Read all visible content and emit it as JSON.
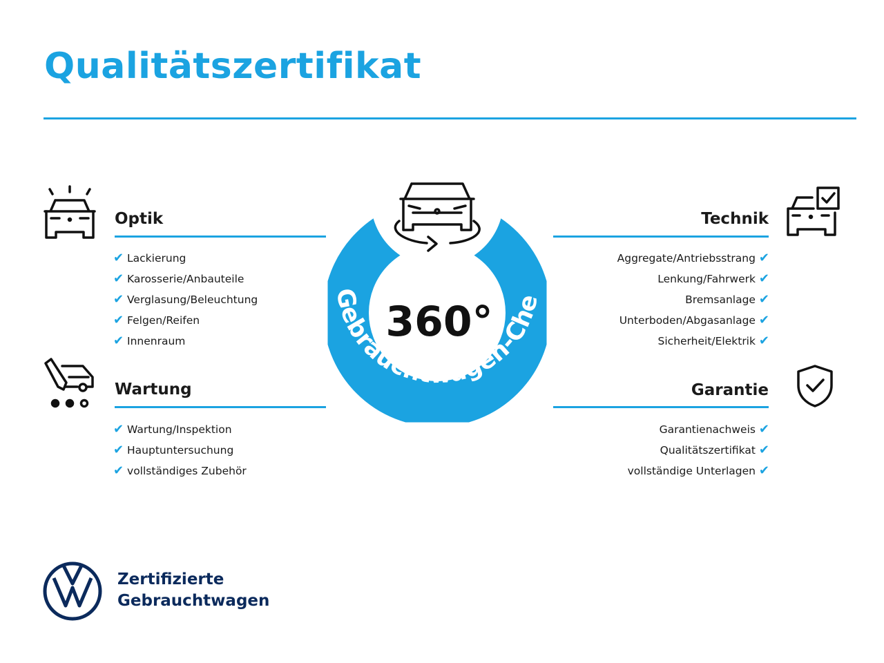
{
  "title": "Qualitätszertifikat",
  "colors": {
    "accent": "#1ba3e1",
    "brand_navy": "#0b2a5c"
  },
  "center": {
    "big_text": "360°",
    "ring_text": "Gebrauchtwagen-Check",
    "icon": "car-rotate-icon"
  },
  "sections": {
    "optik": {
      "heading": "Optik",
      "icon": "car-lights-icon",
      "items": [
        "Lackierung",
        "Karosserie/Anbauteile",
        "Verglasung/Beleuchtung",
        "Felgen/Reifen",
        "Innenraum"
      ]
    },
    "wartung": {
      "heading": "Wartung",
      "icon": "service-tool-icon",
      "items": [
        "Wartung/Inspektion",
        "Hauptuntersuchung",
        "vollständiges Zubehör"
      ]
    },
    "technik": {
      "heading": "Technik",
      "icon": "car-checkbox-icon",
      "items": [
        "Aggregate/Antriebsstrang",
        "Lenkung/Fahrwerk",
        "Bremsanlage",
        "Unterboden/Abgasanlage",
        "Sicherheit/Elektrik"
      ]
    },
    "garantie": {
      "heading": "Garantie",
      "icon": "shield-check-icon",
      "items": [
        "Garantienachweis",
        "Qualitätszertifikat",
        "vollständige Unterlagen"
      ]
    }
  },
  "check_glyph": "✔",
  "footer": {
    "line1": "Zertifizierte",
    "line2": "Gebrauchtwagen",
    "logo": "vw-logo"
  }
}
